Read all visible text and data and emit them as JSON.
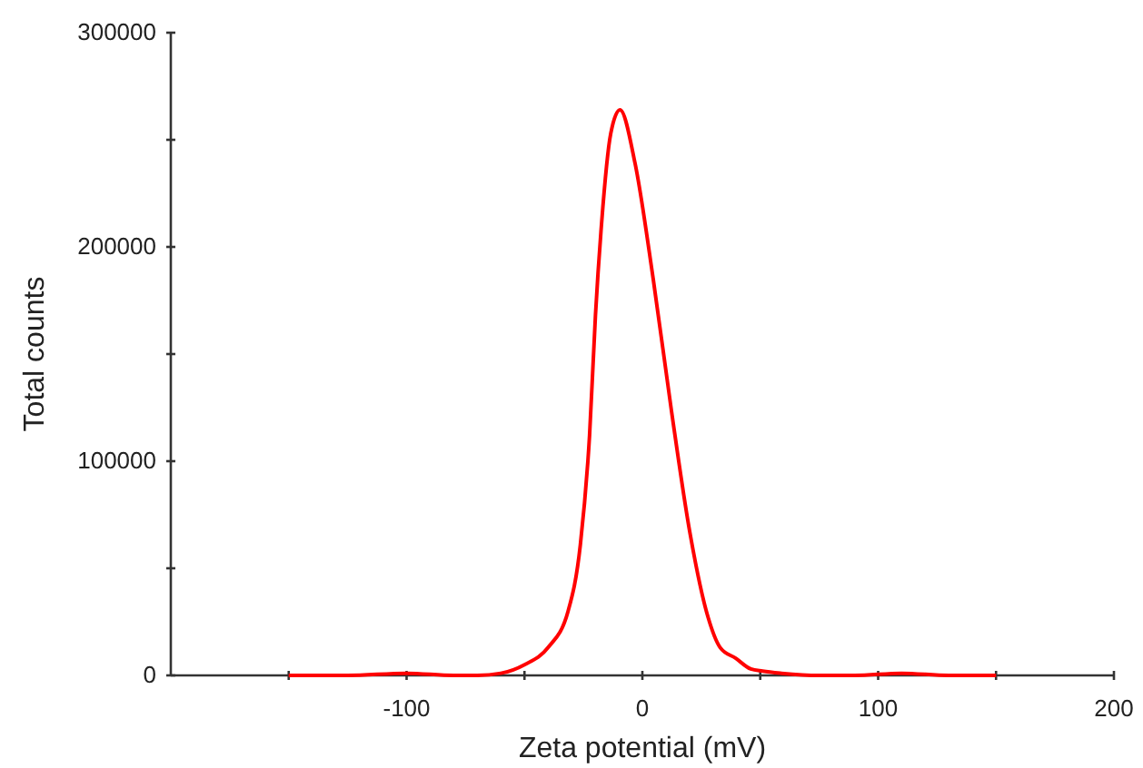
{
  "chart_data": {
    "type": "line",
    "xlabel": "Zeta potential (mV)",
    "ylabel": "Total counts",
    "xlim": [
      -200,
      200
    ],
    "xticks": [
      {
        "value": -150,
        "label": null
      },
      {
        "value": -100,
        "label": "-100"
      },
      {
        "value": -50,
        "label": null
      },
      0,
      {
        "value": 50,
        "label": null
      },
      100,
      {
        "value": 150,
        "label": null
      },
      200
    ],
    "ylim": [
      0,
      300000
    ],
    "yticks": [
      0,
      {
        "value": 50000,
        "label": null
      },
      100000,
      {
        "value": 150000,
        "label": null
      },
      200000,
      {
        "value": 250000,
        "label": null
      },
      300000
    ],
    "marker": "none",
    "line_style": "solid",
    "series": [
      {
        "color": "#ff0000",
        "x": [
          -150,
          -125,
          -100,
          -80,
          -70,
          -60,
          -50,
          -40,
          -31.5,
          -26.3,
          -22.4,
          -19.9,
          -17.3,
          -13.4,
          -9.5,
          -3.1,
          4.6,
          12.4,
          20.1,
          27.9,
          33,
          39.6,
          46,
          51,
          59,
          75,
          90,
          110,
          130,
          150
        ],
        "values": [
          0,
          0,
          1000,
          0,
          0,
          1000,
          5000,
          13000,
          30000,
          61000,
          112000,
          168000,
          211000,
          253000,
          264000,
          239000,
          185000,
          123000,
          67000,
          27000,
          13000,
          8000,
          3000,
          2000,
          1000,
          0,
          0,
          1000,
          0,
          0
        ]
      }
    ]
  }
}
